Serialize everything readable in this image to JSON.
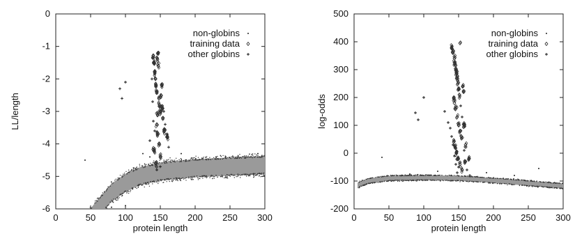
{
  "chart_data": [
    {
      "type": "scatter",
      "xlabel": "protein length",
      "ylabel": "LL/length",
      "xlim": [
        0,
        300
      ],
      "ylim": [
        -6,
        0
      ],
      "xticks": [
        0,
        50,
        100,
        150,
        200,
        250,
        300
      ],
      "yticks": [
        0,
        -1,
        -2,
        -3,
        -4,
        -5,
        -6
      ],
      "legend_position": "top-right",
      "legend": [
        "non-globins",
        "training data",
        "other globins"
      ],
      "series": [
        {
          "name": "non-globins",
          "marker": "dot",
          "band": [
            [
              45,
              -6.4
            ],
            [
              60,
              -6.0
            ],
            [
              80,
              -5.5
            ],
            [
              100,
              -5.2
            ],
            [
              120,
              -5.0
            ],
            [
              150,
              -4.85
            ],
            [
              200,
              -4.75
            ],
            [
              250,
              -4.7
            ],
            [
              300,
              -4.65
            ]
          ],
          "band_halfwidth": 0.28,
          "outliers": [
            [
              42,
              -4.5
            ],
            [
              125,
              -4.3
            ],
            [
              135,
              -4.4
            ],
            [
              180,
              -4.3
            ],
            [
              230,
              -4.4
            ],
            [
              290,
              -4.3
            ],
            [
              100,
              -5.9
            ],
            [
              80,
              -5.95
            ]
          ]
        },
        {
          "name": "training data",
          "marker": "diamond",
          "points": [
            [
              140,
              -1.3
            ],
            [
              141,
              -1.5
            ],
            [
              142,
              -1.8
            ],
            [
              143,
              -2.0
            ],
            [
              144,
              -2.2
            ],
            [
              145,
              -2.4
            ],
            [
              146,
              -1.4
            ],
            [
              147,
              -1.6
            ],
            [
              148,
              -2.6
            ],
            [
              149,
              -2.8
            ],
            [
              150,
              -3.0
            ],
            [
              151,
              -2.5
            ],
            [
              152,
              -2.2
            ],
            [
              153,
              -2.9
            ],
            [
              145,
              -3.4
            ],
            [
              146,
              -3.7
            ],
            [
              148,
              -4.0
            ],
            [
              141,
              -4.2
            ],
            [
              150,
              -4.4
            ],
            [
              154,
              -3.2
            ],
            [
              156,
              -3.6
            ],
            [
              160,
              -3.8
            ],
            [
              144,
              -4.6
            ],
            [
              147,
              -1.2
            ],
            [
              146,
              -3.1
            ]
          ]
        },
        {
          "name": "other globins",
          "marker": "plus",
          "points": [
            [
              92,
              -2.3
            ],
            [
              100,
              -2.1
            ],
            [
              95,
              -2.6
            ],
            [
              138,
              -2.0
            ],
            [
              139,
              -2.7
            ],
            [
              140,
              -3.3
            ],
            [
              142,
              -3.6
            ],
            [
              155,
              -3.0
            ],
            [
              157,
              -3.4
            ],
            [
              160,
              -3.7
            ],
            [
              162,
              -4.1
            ],
            [
              145,
              -4.8
            ],
            [
              150,
              -4.7
            ],
            [
              135,
              -3.9
            ]
          ]
        }
      ]
    },
    {
      "type": "scatter",
      "xlabel": "protein length",
      "ylabel": "log-odds",
      "xlim": [
        0,
        300
      ],
      "ylim": [
        -200,
        500
      ],
      "xticks": [
        0,
        50,
        100,
        150,
        200,
        250,
        300
      ],
      "yticks": [
        500,
        400,
        300,
        200,
        100,
        0,
        -100,
        -200
      ],
      "legend_position": "top-right",
      "legend": [
        "non-globins",
        "training data",
        "other globins"
      ],
      "series": [
        {
          "name": "non-globins",
          "marker": "dot",
          "band": [
            [
              5,
              -115
            ],
            [
              20,
              -100
            ],
            [
              50,
              -90
            ],
            [
              100,
              -88
            ],
            [
              150,
              -90
            ],
            [
              200,
              -98
            ],
            [
              250,
              -108
            ],
            [
              300,
              -118
            ]
          ],
          "band_halfwidth": 9,
          "outliers": [
            [
              40,
              -15
            ],
            [
              120,
              -65
            ],
            [
              190,
              -70
            ],
            [
              265,
              -55
            ],
            [
              230,
              -80
            ],
            [
              80,
              -75
            ]
          ]
        },
        {
          "name": "training data",
          "marker": "diamond",
          "points": [
            [
              140,
              380
            ],
            [
              142,
              360
            ],
            [
              144,
              340
            ],
            [
              145,
              320
            ],
            [
              146,
              300
            ],
            [
              147,
              290
            ],
            [
              148,
              270
            ],
            [
              149,
              250
            ],
            [
              150,
              230
            ],
            [
              151,
              210
            ],
            [
              152,
              395
            ],
            [
              143,
              200
            ],
            [
              144,
              180
            ],
            [
              146,
              160
            ],
            [
              148,
              130
            ],
            [
              150,
              100
            ],
            [
              152,
              80
            ],
            [
              154,
              60
            ],
            [
              156,
              240
            ],
            [
              157,
              220
            ],
            [
              143,
              40
            ],
            [
              145,
              20
            ],
            [
              147,
              0
            ],
            [
              149,
              -20
            ],
            [
              152,
              -40
            ],
            [
              155,
              -60
            ],
            [
              160,
              -30
            ],
            [
              165,
              -20
            ],
            [
              160,
              30
            ],
            [
              158,
              100
            ]
          ]
        },
        {
          "name": "other globins",
          "marker": "plus",
          "points": [
            [
              88,
              145
            ],
            [
              92,
              120
            ],
            [
              100,
              200
            ],
            [
              130,
              150
            ],
            [
              135,
              110
            ],
            [
              138,
              90
            ],
            [
              140,
              60
            ],
            [
              142,
              30
            ],
            [
              144,
              -10
            ],
            [
              146,
              -40
            ],
            [
              148,
              -70
            ],
            [
              150,
              -50
            ],
            [
              153,
              170
            ],
            [
              155,
              130
            ],
            [
              158,
              10
            ],
            [
              162,
              -60
            ],
            [
              166,
              -80
            ]
          ]
        }
      ]
    }
  ]
}
